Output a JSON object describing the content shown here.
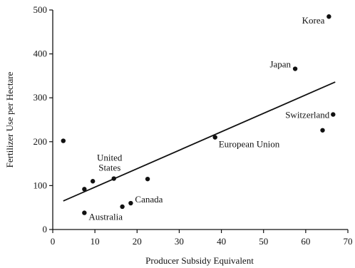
{
  "chart_data": {
    "type": "scatter",
    "title": "",
    "xlabel": "Producer Subsidy Equivalent",
    "ylabel": "Fertilizer Use per Hectare",
    "xlim": [
      0,
      70
    ],
    "ylim": [
      0,
      500
    ],
    "xticks": [
      0,
      10,
      20,
      30,
      40,
      50,
      60,
      70
    ],
    "yticks": [
      0,
      100,
      200,
      300,
      400,
      500
    ],
    "grid": false,
    "points": [
      {
        "x": 2.5,
        "y": 202,
        "label": ""
      },
      {
        "x": 7.5,
        "y": 92,
        "label": ""
      },
      {
        "x": 7.5,
        "y": 38,
        "label": "Australia"
      },
      {
        "x": 9.5,
        "y": 110,
        "label": ""
      },
      {
        "x": 14.5,
        "y": 116,
        "label": "United States"
      },
      {
        "x": 16.5,
        "y": 52,
        "label": ""
      },
      {
        "x": 18.5,
        "y": 60,
        "label": "Canada"
      },
      {
        "x": 22.5,
        "y": 115,
        "label": ""
      },
      {
        "x": 38.5,
        "y": 210,
        "label": "European Union"
      },
      {
        "x": 57.5,
        "y": 366,
        "label": "Japan"
      },
      {
        "x": 64,
        "y": 226,
        "label": ""
      },
      {
        "x": 66.5,
        "y": 262,
        "label": "Switzerland"
      },
      {
        "x": 65.5,
        "y": 485,
        "label": "Korea"
      }
    ],
    "trendline": {
      "x1": 2.5,
      "y1": 65,
      "x2": 67,
      "y2": 336
    }
  }
}
